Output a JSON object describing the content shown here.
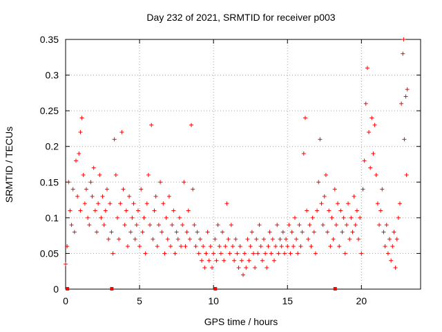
{
  "chart_data": {
    "type": "scatter",
    "title": "Day 232 of 2021, SRMTID for receiver p003",
    "xlabel": "GPS time / hours",
    "ylabel": "SRMTID / TECUs",
    "xlim": [
      0,
      24
    ],
    "ylim": [
      0,
      0.35
    ],
    "x_ticks": [
      0,
      5,
      10,
      15,
      20
    ],
    "x_tick_labels": [
      "0",
      "5",
      "10",
      "15",
      "20"
    ],
    "y_ticks": [
      0,
      0.05,
      0.1,
      0.15,
      0.2,
      0.25,
      0.3,
      0.35
    ],
    "y_tick_labels": [
      "0",
      "0.05",
      "0.1",
      "0.15",
      "0.2",
      "0.25",
      "0.3",
      "0.35"
    ],
    "grid": true,
    "marker": "+",
    "marker_color": "#ff0000",
    "baseline_markers_x": [
      0.1,
      3.1,
      10.1,
      18.2
    ],
    "series": [
      {
        "name": "SRMTID",
        "points": [
          [
            0.0,
            0.035
          ],
          [
            0.1,
            0.06
          ],
          [
            0.2,
            0.15
          ],
          [
            0.3,
            0.11
          ],
          [
            0.4,
            0.09
          ],
          [
            0.5,
            0.14
          ],
          [
            0.6,
            0.08
          ],
          [
            0.7,
            0.18
          ],
          [
            0.8,
            0.13
          ],
          [
            0.9,
            0.19
          ],
          [
            1.0,
            0.11
          ],
          [
            1.0,
            0.22
          ],
          [
            1.1,
            0.24
          ],
          [
            1.2,
            0.16
          ],
          [
            1.3,
            0.12
          ],
          [
            1.4,
            0.14
          ],
          [
            1.5,
            0.1
          ],
          [
            1.6,
            0.09
          ],
          [
            1.7,
            0.15
          ],
          [
            1.8,
            0.13
          ],
          [
            1.9,
            0.17
          ],
          [
            2.0,
            0.11
          ],
          [
            2.1,
            0.08
          ],
          [
            2.2,
            0.12
          ],
          [
            2.3,
            0.16
          ],
          [
            2.4,
            0.1
          ],
          [
            2.5,
            0.13
          ],
          [
            2.6,
            0.09
          ],
          [
            2.7,
            0.11
          ],
          [
            2.8,
            0.14
          ],
          [
            2.9,
            0.07
          ],
          [
            3.0,
            0.12
          ],
          [
            3.1,
            0.08
          ],
          [
            3.2,
            0.05
          ],
          [
            3.3,
            0.21
          ],
          [
            3.4,
            0.16
          ],
          [
            3.5,
            0.1
          ],
          [
            3.6,
            0.07
          ],
          [
            3.7,
            0.12
          ],
          [
            3.8,
            0.22
          ],
          [
            3.9,
            0.14
          ],
          [
            4.0,
            0.09
          ],
          [
            4.1,
            0.11
          ],
          [
            4.2,
            0.06
          ],
          [
            4.3,
            0.13
          ],
          [
            4.4,
            0.08
          ],
          [
            4.5,
            0.1
          ],
          [
            4.6,
            0.12
          ],
          [
            4.7,
            0.07
          ],
          [
            4.8,
            0.09
          ],
          [
            4.9,
            0.11
          ],
          [
            5.0,
            0.06
          ],
          [
            5.1,
            0.14
          ],
          [
            5.2,
            0.08
          ],
          [
            5.3,
            0.1
          ],
          [
            5.4,
            0.05
          ],
          [
            5.5,
            0.12
          ],
          [
            5.6,
            0.16
          ],
          [
            5.7,
            0.09
          ],
          [
            5.8,
            0.23
          ],
          [
            5.9,
            0.07
          ],
          [
            6.0,
            0.11
          ],
          [
            6.1,
            0.13
          ],
          [
            6.2,
            0.06
          ],
          [
            6.3,
            0.09
          ],
          [
            6.4,
            0.15
          ],
          [
            6.5,
            0.08
          ],
          [
            6.6,
            0.12
          ],
          [
            6.7,
            0.05
          ],
          [
            6.8,
            0.1
          ],
          [
            6.9,
            0.07
          ],
          [
            7.0,
            0.13
          ],
          [
            7.1,
            0.06
          ],
          [
            7.2,
            0.09
          ],
          [
            7.3,
            0.11
          ],
          [
            7.4,
            0.05
          ],
          [
            7.5,
            0.08
          ],
          [
            7.6,
            0.07
          ],
          [
            7.7,
            0.1
          ],
          [
            7.8,
            0.06
          ],
          [
            7.9,
            0.09
          ],
          [
            8.0,
            0.15
          ],
          [
            8.1,
            0.06
          ],
          [
            8.2,
            0.08
          ],
          [
            8.3,
            0.11
          ],
          [
            8.4,
            0.07
          ],
          [
            8.5,
            0.23
          ],
          [
            8.6,
            0.14
          ],
          [
            8.7,
            0.09
          ],
          [
            8.8,
            0.06
          ],
          [
            8.9,
            0.08
          ],
          [
            9.0,
            0.05
          ],
          [
            9.1,
            0.07
          ],
          [
            9.2,
            0.04
          ],
          [
            9.3,
            0.06
          ],
          [
            9.4,
            0.03
          ],
          [
            9.5,
            0.05
          ],
          [
            9.6,
            0.08
          ],
          [
            9.7,
            0.04
          ],
          [
            9.8,
            0.06
          ],
          [
            9.9,
            0.03
          ],
          [
            10.0,
            0.05
          ],
          [
            10.1,
            0.07
          ],
          [
            10.2,
            0.04
          ],
          [
            10.3,
            0.09
          ],
          [
            10.4,
            0.06
          ],
          [
            10.5,
            0.05
          ],
          [
            10.6,
            0.08
          ],
          [
            10.7,
            0.04
          ],
          [
            10.8,
            0.06
          ],
          [
            10.9,
            0.12
          ],
          [
            11.0,
            0.07
          ],
          [
            11.1,
            0.05
          ],
          [
            11.2,
            0.09
          ],
          [
            11.3,
            0.06
          ],
          [
            11.4,
            0.04
          ],
          [
            11.5,
            0.07
          ],
          [
            11.6,
            0.05
          ],
          [
            11.7,
            0.03
          ],
          [
            11.8,
            0.06
          ],
          [
            11.9,
            0.04
          ],
          [
            12.0,
            0.02
          ],
          [
            12.1,
            0.05
          ],
          [
            12.2,
            0.03
          ],
          [
            12.3,
            0.07
          ],
          [
            12.4,
            0.04
          ],
          [
            12.5,
            0.06
          ],
          [
            12.6,
            0.08
          ],
          [
            12.7,
            0.05
          ],
          [
            12.8,
            0.03
          ],
          [
            12.9,
            0.07
          ],
          [
            13.0,
            0.05
          ],
          [
            13.1,
            0.09
          ],
          [
            13.2,
            0.06
          ],
          [
            13.3,
            0.04
          ],
          [
            13.4,
            0.07
          ],
          [
            13.5,
            0.05
          ],
          [
            13.6,
            0.03
          ],
          [
            13.7,
            0.06
          ],
          [
            13.8,
            0.08
          ],
          [
            13.9,
            0.05
          ],
          [
            14.0,
            0.07
          ],
          [
            14.1,
            0.04
          ],
          [
            14.2,
            0.06
          ],
          [
            14.3,
            0.09
          ],
          [
            14.4,
            0.05
          ],
          [
            14.5,
            0.07
          ],
          [
            14.6,
            0.06
          ],
          [
            14.7,
            0.08
          ],
          [
            14.8,
            0.05
          ],
          [
            14.9,
            0.07
          ],
          [
            15.0,
            0.06
          ],
          [
            15.1,
            0.09
          ],
          [
            15.2,
            0.05
          ],
          [
            15.3,
            0.08
          ],
          [
            15.4,
            0.06
          ],
          [
            15.5,
            0.1
          ],
          [
            15.6,
            0.07
          ],
          [
            15.7,
            0.05
          ],
          [
            15.8,
            0.09
          ],
          [
            15.9,
            0.06
          ],
          [
            16.0,
            0.08
          ],
          [
            16.1,
            0.19
          ],
          [
            16.2,
            0.24
          ],
          [
            16.3,
            0.11
          ],
          [
            16.4,
            0.07
          ],
          [
            16.5,
            0.09
          ],
          [
            16.6,
            0.06
          ],
          [
            16.7,
            0.1
          ],
          [
            16.8,
            0.08
          ],
          [
            16.9,
            0.05
          ],
          [
            17.0,
            0.11
          ],
          [
            17.1,
            0.15
          ],
          [
            17.2,
            0.21
          ],
          [
            17.3,
            0.12
          ],
          [
            17.4,
            0.09
          ],
          [
            17.5,
            0.13
          ],
          [
            17.6,
            0.16
          ],
          [
            17.7,
            0.08
          ],
          [
            17.8,
            0.11
          ],
          [
            17.9,
            0.06
          ],
          [
            18.0,
            0.1
          ],
          [
            18.1,
            0.07
          ],
          [
            18.2,
            0.14
          ],
          [
            18.3,
            0.09
          ],
          [
            18.4,
            0.12
          ],
          [
            18.5,
            0.06
          ],
          [
            18.6,
            0.11
          ],
          [
            18.7,
            0.08
          ],
          [
            18.8,
            0.1
          ],
          [
            18.9,
            0.05
          ],
          [
            19.0,
            0.09
          ],
          [
            19.1,
            0.12
          ],
          [
            19.2,
            0.07
          ],
          [
            19.3,
            0.1
          ],
          [
            19.4,
            0.08
          ],
          [
            19.5,
            0.13
          ],
          [
            19.6,
            0.09
          ],
          [
            19.7,
            0.11
          ],
          [
            19.8,
            0.07
          ],
          [
            19.9,
            0.1
          ],
          [
            20.0,
            0.05
          ],
          [
            20.1,
            0.14
          ],
          [
            20.2,
            0.18
          ],
          [
            20.3,
            0.26
          ],
          [
            20.4,
            0.31
          ],
          [
            20.5,
            0.22
          ],
          [
            20.6,
            0.17
          ],
          [
            20.7,
            0.24
          ],
          [
            20.8,
            0.19
          ],
          [
            20.9,
            0.23
          ],
          [
            21.0,
            0.16
          ],
          [
            21.1,
            0.12
          ],
          [
            21.2,
            0.09
          ],
          [
            21.3,
            0.11
          ],
          [
            21.4,
            0.14
          ],
          [
            21.5,
            0.08
          ],
          [
            21.6,
            0.06
          ],
          [
            21.7,
            0.09
          ],
          [
            21.8,
            0.05
          ],
          [
            21.9,
            0.07
          ],
          [
            22.0,
            0.04
          ],
          [
            22.1,
            0.06
          ],
          [
            22.2,
            0.08
          ],
          [
            22.3,
            0.03
          ],
          [
            22.4,
            0.07
          ],
          [
            22.5,
            0.1
          ],
          [
            22.6,
            0.12
          ],
          [
            22.7,
            0.26
          ],
          [
            22.8,
            0.33
          ],
          [
            22.85,
            0.35
          ],
          [
            22.9,
            0.21
          ],
          [
            23.0,
            0.27
          ],
          [
            23.05,
            0.16
          ],
          [
            23.1,
            0.28
          ]
        ]
      }
    ]
  }
}
